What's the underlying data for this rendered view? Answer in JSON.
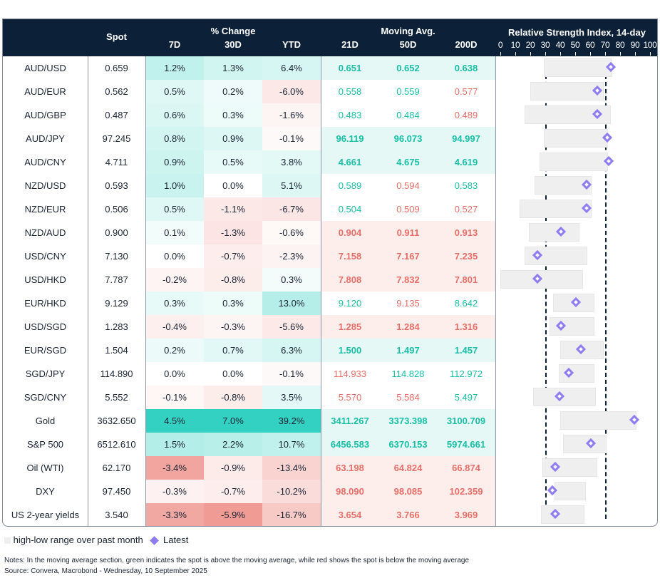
{
  "header": {
    "spot": "Spot",
    "pct_change": "% Change",
    "d7": "7D",
    "d30": "30D",
    "ytd": "YTD",
    "moving_avg": "Moving Avg.",
    "ma21": "21D",
    "ma50": "50D",
    "ma200": "200D",
    "rsi_title": "Relative Strength Index, 14-day",
    "rsi_ticks": [
      "0",
      "10",
      "20",
      "30",
      "40",
      "50",
      "60",
      "70",
      "80",
      "90",
      "100"
    ]
  },
  "colors": {
    "header_bg": "#0c2038",
    "green_text": "#18bfa6",
    "red_text": "#e76f67",
    "positive": "#33d1c1",
    "negative": "#ee8a82",
    "latest_marker": "#8f7cf0",
    "range_bar": "#efefef"
  },
  "rsi_thresholds": [
    30,
    70
  ],
  "rows": [
    {
      "name": "AUD/USD",
      "spot": "0.659",
      "d7": "1.2%",
      "d30": "1.3%",
      "ytd": "6.4%",
      "ma21": "0.651",
      "ma50": "0.652",
      "ma200": "0.638",
      "rsi_low": 29,
      "rsi_high": 75,
      "rsi_latest": 75
    },
    {
      "name": "AUD/EUR",
      "spot": "0.562",
      "d7": "0.5%",
      "d30": "0.2%",
      "ytd": "-6.0%",
      "ma21": "0.558",
      "ma50": "0.559",
      "ma200": "0.577",
      "rsi_low": 20,
      "rsi_high": 69,
      "rsi_latest": 66
    },
    {
      "name": "AUD/GBP",
      "spot": "0.487",
      "d7": "0.6%",
      "d30": "0.3%",
      "ytd": "-1.6%",
      "ma21": "0.483",
      "ma50": "0.484",
      "ma200": "0.489",
      "rsi_low": 16,
      "rsi_high": 74,
      "rsi_latest": 66
    },
    {
      "name": "AUD/JPY",
      "spot": "97.245",
      "d7": "0.8%",
      "d30": "0.9%",
      "ytd": "-0.1%",
      "ma21": "96.119",
      "ma50": "96.073",
      "ma200": "94.997",
      "rsi_low": 29,
      "rsi_high": 72,
      "rsi_latest": 73
    },
    {
      "name": "AUD/CNY",
      "spot": "4.711",
      "d7": "0.9%",
      "d30": "0.5%",
      "ytd": "3.8%",
      "ma21": "4.661",
      "ma50": "4.675",
      "ma200": "4.619",
      "rsi_low": 26,
      "rsi_high": 72,
      "rsi_latest": 74
    },
    {
      "name": "NZD/USD",
      "spot": "0.593",
      "d7": "1.0%",
      "d30": "0.0%",
      "ytd": "5.1%",
      "ma21": "0.589",
      "ma50": "0.594",
      "ma200": "0.583",
      "rsi_low": 23,
      "rsi_high": 61,
      "rsi_latest": 59
    },
    {
      "name": "NZD/EUR",
      "spot": "0.506",
      "d7": "0.5%",
      "d30": "-1.1%",
      "ytd": "-6.7%",
      "ma21": "0.504",
      "ma50": "0.509",
      "ma200": "0.527",
      "rsi_low": 13,
      "rsi_high": 61,
      "rsi_latest": 59
    },
    {
      "name": "NZD/AUD",
      "spot": "0.900",
      "d7": "0.1%",
      "d30": "-1.3%",
      "ytd": "-0.6%",
      "ma21": "0.904",
      "ma50": "0.911",
      "ma200": "0.913",
      "rsi_low": 19,
      "rsi_high": 53,
      "rsi_latest": 42
    },
    {
      "name": "USD/CNY",
      "spot": "7.130",
      "d7": "0.0%",
      "d30": "-0.7%",
      "ytd": "-2.3%",
      "ma21": "7.158",
      "ma50": "7.167",
      "ma200": "7.235",
      "rsi_low": 16,
      "rsi_high": 58,
      "rsi_latest": 26
    },
    {
      "name": "USD/HKD",
      "spot": "7.787",
      "d7": "-0.2%",
      "d30": "-0.8%",
      "ytd": "0.3%",
      "ma21": "7.808",
      "ma50": "7.832",
      "ma200": "7.801",
      "rsi_low": 0,
      "rsi_high": 55,
      "rsi_latest": 26
    },
    {
      "name": "EUR/HKD",
      "spot": "9.129",
      "d7": "0.3%",
      "d30": "0.3%",
      "ytd": "13.0%",
      "ma21": "9.120",
      "ma50": "9.135",
      "ma200": "8.642",
      "rsi_low": 35,
      "rsi_high": 63,
      "rsi_latest": 52
    },
    {
      "name": "USD/SGD",
      "spot": "1.283",
      "d7": "-0.4%",
      "d30": "-0.3%",
      "ytd": "-5.6%",
      "ma21": "1.285",
      "ma50": "1.284",
      "ma200": "1.316",
      "rsi_low": 33,
      "rsi_high": 63,
      "rsi_latest": 42
    },
    {
      "name": "EUR/SGD",
      "spot": "1.504",
      "d7": "0.2%",
      "d30": "0.7%",
      "ytd": "6.3%",
      "ma21": "1.500",
      "ma50": "1.497",
      "ma200": "1.457",
      "rsi_low": 40,
      "rsi_high": 69,
      "rsi_latest": 55
    },
    {
      "name": "SGD/JPY",
      "spot": "114.890",
      "d7": "0.0%",
      "d30": "0.0%",
      "ytd": "-0.1%",
      "ma21": "114.933",
      "ma50": "114.828",
      "ma200": "112.972",
      "rsi_low": 39,
      "rsi_high": 63,
      "rsi_latest": 47
    },
    {
      "name": "SGD/CNY",
      "spot": "5.552",
      "d7": "-0.1%",
      "d30": "-0.8%",
      "ytd": "3.5%",
      "ma21": "5.570",
      "ma50": "5.584",
      "ma200": "5.497",
      "rsi_low": 22,
      "rsi_high": 64,
      "rsi_latest": 41
    },
    {
      "name": "Gold",
      "spot": "3632.650",
      "d7": "4.5%",
      "d30": "7.0%",
      "ytd": "39.2%",
      "ma21": "3411.267",
      "ma50": "3373.398",
      "ma200": "3100.709",
      "rsi_low": 40,
      "rsi_high": 91,
      "rsi_latest": 91
    },
    {
      "name": "S&P 500",
      "spot": "6512.610",
      "d7": "1.5%",
      "d30": "2.2%",
      "ytd": "10.7%",
      "ma21": "6456.583",
      "ma50": "6370.153",
      "ma200": "5974.661",
      "rsi_low": 42,
      "rsi_high": 71,
      "rsi_latest": 62
    },
    {
      "name": "Oil (WTI)",
      "spot": "62.170",
      "d7": "-3.4%",
      "d30": "-0.9%",
      "ytd": "-13.4%",
      "ma21": "63.198",
      "ma50": "64.824",
      "ma200": "66.874",
      "rsi_low": 28,
      "rsi_high": 65,
      "rsi_latest": 38
    },
    {
      "name": "DXY",
      "spot": "97.450",
      "d7": "-0.3%",
      "d30": "-0.7%",
      "ytd": "-10.2%",
      "ma21": "98.090",
      "ma50": "98.085",
      "ma200": "102.359",
      "rsi_low": 36,
      "rsi_high": 57,
      "rsi_latest": 36
    },
    {
      "name": "US 2-year yields",
      "spot": "3.540",
      "d7": "-3.3%",
      "d30": "-5.9%",
      "ytd": "-16.7%",
      "ma21": "3.654",
      "ma50": "3.766",
      "ma200": "3.969",
      "rsi_low": 27,
      "rsi_high": 56,
      "rsi_latest": 38
    }
  ],
  "legend": {
    "range": "high-low range over past month",
    "latest": "Latest"
  },
  "notes": "Notes: In the moving average section, green indicates the spot is above the moving average, while red shows the spot is below the moving average",
  "source": "Source: Convera, Macrobond - Wednesday, 10 September 2025"
}
